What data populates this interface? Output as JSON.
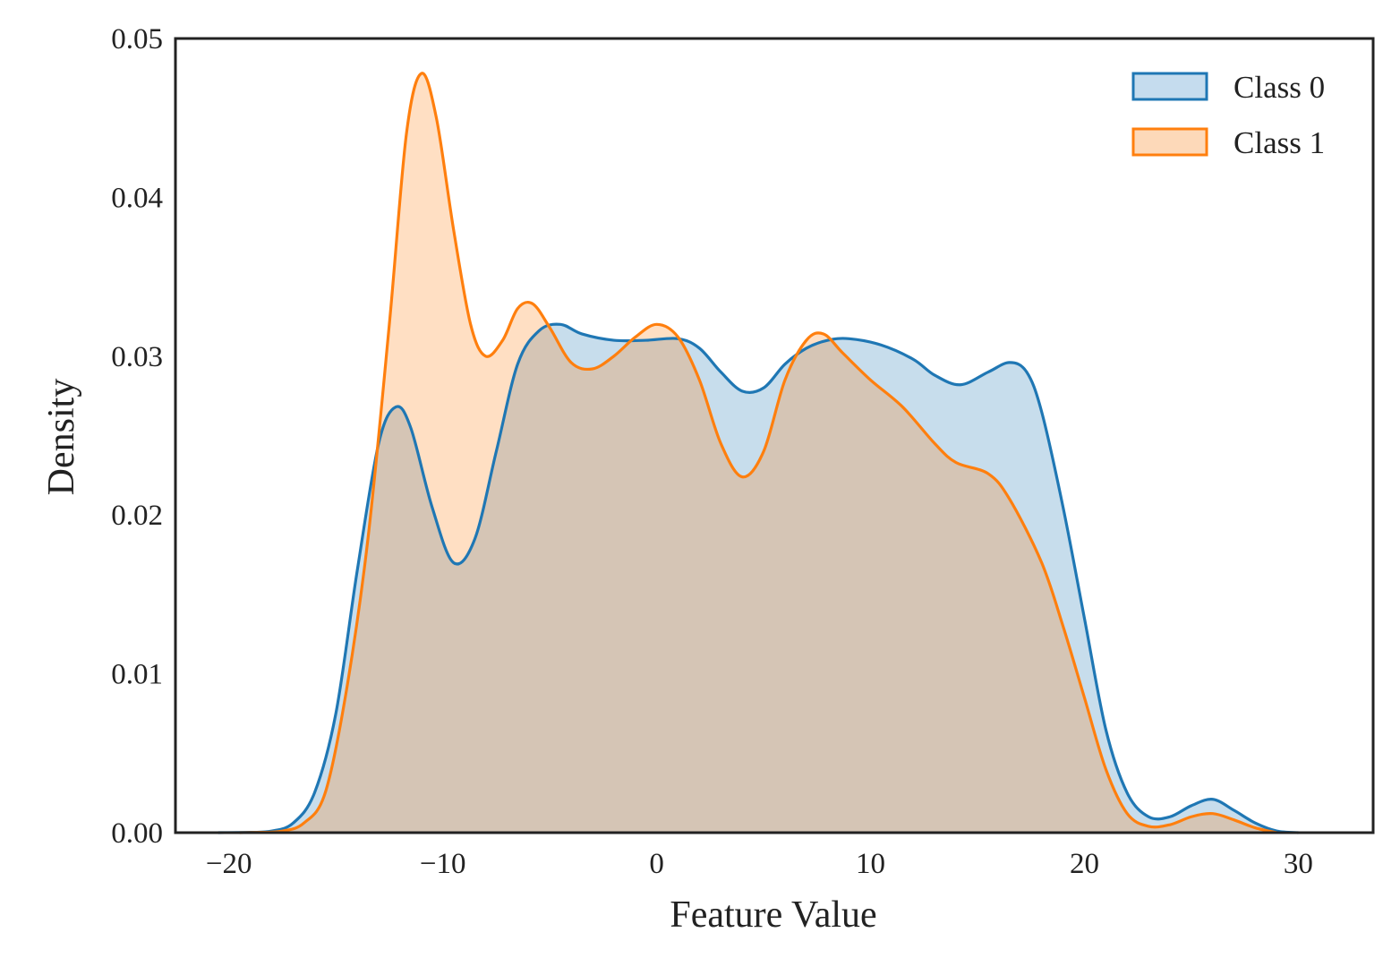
{
  "chart_data": {
    "type": "area",
    "xlabel": "Feature Value",
    "ylabel": "Density",
    "xlim": [
      -22.5,
      33.5
    ],
    "ylim": [
      0,
      0.05
    ],
    "x_ticks": [
      -20,
      -10,
      0,
      10,
      20,
      30
    ],
    "x_tick_labels": [
      "−20",
      "−10",
      "0",
      "10",
      "20",
      "30"
    ],
    "y_ticks": [
      0,
      0.01,
      0.02,
      0.03,
      0.04,
      0.05
    ],
    "y_tick_labels": [
      "0.00",
      "0.01",
      "0.02",
      "0.03",
      "0.04",
      "0.05"
    ],
    "grid": false,
    "legend_position": "top-right",
    "series": [
      {
        "name": "Class 0",
        "color": "#1f77b4",
        "fill": "#c5dcee",
        "points": [
          [
            -20.5,
            0
          ],
          [
            -19,
            2e-05
          ],
          [
            -18,
            0.0001
          ],
          [
            -17,
            0.0006
          ],
          [
            -16,
            0.0025
          ],
          [
            -15,
            0.0075
          ],
          [
            -14,
            0.0165
          ],
          [
            -13,
            0.0245
          ],
          [
            -12.2,
            0.0268
          ],
          [
            -11.5,
            0.0255
          ],
          [
            -10.5,
            0.0205
          ],
          [
            -9.5,
            0.017
          ],
          [
            -8.5,
            0.0185
          ],
          [
            -7.5,
            0.024
          ],
          [
            -6.5,
            0.0295
          ],
          [
            -5.5,
            0.0316
          ],
          [
            -4.5,
            0.032
          ],
          [
            -3.5,
            0.0314
          ],
          [
            -2,
            0.031
          ],
          [
            -0.5,
            0.031
          ],
          [
            1,
            0.0311
          ],
          [
            2,
            0.0305
          ],
          [
            3,
            0.029
          ],
          [
            4,
            0.0278
          ],
          [
            5,
            0.028
          ],
          [
            6,
            0.0295
          ],
          [
            7,
            0.0305
          ],
          [
            8,
            0.031
          ],
          [
            9,
            0.0311
          ],
          [
            10.5,
            0.0307
          ],
          [
            12,
            0.0298
          ],
          [
            13,
            0.0288
          ],
          [
            14.2,
            0.0282
          ],
          [
            15.5,
            0.029
          ],
          [
            16.5,
            0.0296
          ],
          [
            17.3,
            0.029
          ],
          [
            18,
            0.0265
          ],
          [
            19,
            0.0205
          ],
          [
            20,
            0.0135
          ],
          [
            21,
            0.0065
          ],
          [
            22,
            0.0025
          ],
          [
            23,
            0.001
          ],
          [
            24,
            0.001
          ],
          [
            25,
            0.0017
          ],
          [
            26,
            0.0021
          ],
          [
            27,
            0.0014
          ],
          [
            28,
            0.0006
          ],
          [
            29,
            0.0001
          ],
          [
            30,
            0
          ]
        ]
      },
      {
        "name": "Class 1",
        "color": "#ff7f0e",
        "fill": "#fdd9b9",
        "points": [
          [
            -19.5,
            0
          ],
          [
            -18.5,
            2e-05
          ],
          [
            -17.5,
            0.0001
          ],
          [
            -16.5,
            0.0006
          ],
          [
            -15.5,
            0.0025
          ],
          [
            -14.5,
            0.009
          ],
          [
            -13.5,
            0.0185
          ],
          [
            -12.5,
            0.032
          ],
          [
            -11.7,
            0.044
          ],
          [
            -11,
            0.0478
          ],
          [
            -10.3,
            0.045
          ],
          [
            -9.5,
            0.038
          ],
          [
            -8.7,
            0.032
          ],
          [
            -8,
            0.03
          ],
          [
            -7.2,
            0.031
          ],
          [
            -6.5,
            0.033
          ],
          [
            -5.8,
            0.0333
          ],
          [
            -5,
            0.0318
          ],
          [
            -4,
            0.0296
          ],
          [
            -3,
            0.0292
          ],
          [
            -2,
            0.03
          ],
          [
            -1,
            0.0312
          ],
          [
            0,
            0.032
          ],
          [
            1,
            0.0312
          ],
          [
            2,
            0.0285
          ],
          [
            3,
            0.0245
          ],
          [
            4,
            0.0224
          ],
          [
            5,
            0.024
          ],
          [
            6,
            0.0285
          ],
          [
            7,
            0.031
          ],
          [
            7.8,
            0.0314
          ],
          [
            8.7,
            0.0302
          ],
          [
            10,
            0.0285
          ],
          [
            11.5,
            0.0268
          ],
          [
            13,
            0.0245
          ],
          [
            14,
            0.0233
          ],
          [
            15.5,
            0.0226
          ],
          [
            16.5,
            0.021
          ],
          [
            18,
            0.017
          ],
          [
            19,
            0.013
          ],
          [
            20,
            0.0085
          ],
          [
            21,
            0.004
          ],
          [
            22,
            0.0012
          ],
          [
            23,
            0.0004
          ],
          [
            24,
            0.0005
          ],
          [
            25,
            0.001
          ],
          [
            26,
            0.0012
          ],
          [
            27,
            0.0008
          ],
          [
            28,
            0.0003
          ],
          [
            29,
            0
          ]
        ]
      }
    ]
  }
}
